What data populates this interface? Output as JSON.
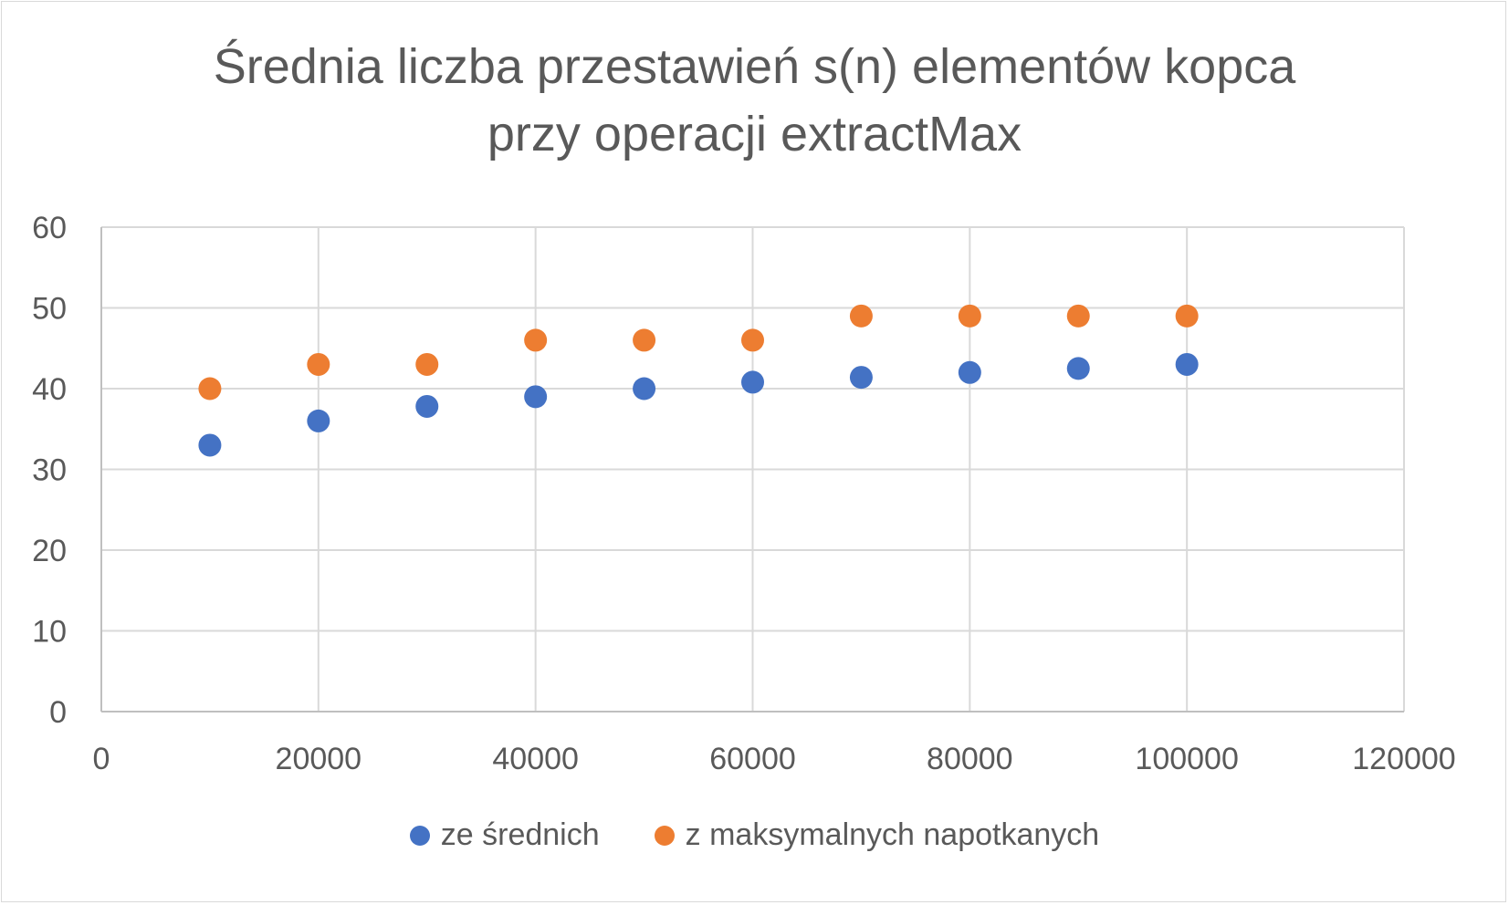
{
  "chart_data": {
    "type": "scatter",
    "title_line1": "Średnia liczba przestawień s(n) elementów kopca",
    "title_line2": "przy operacji extractMax",
    "xlabel": "",
    "ylabel": "",
    "xlim": [
      0,
      120000
    ],
    "ylim": [
      0,
      60
    ],
    "x_ticks": [
      "0",
      "20000",
      "40000",
      "60000",
      "80000",
      "100000",
      "120000"
    ],
    "y_ticks": [
      "0",
      "10",
      "20",
      "30",
      "40",
      "50",
      "60"
    ],
    "grid": true,
    "legend_position": "bottom",
    "series": [
      {
        "name": "ze średnich",
        "color": "#4472c4",
        "x": [
          10000,
          20000,
          30000,
          40000,
          50000,
          60000,
          70000,
          80000,
          90000,
          100000
        ],
        "y": [
          33.0,
          36.0,
          37.8,
          39.0,
          40.0,
          40.8,
          41.4,
          42.0,
          42.5,
          43.0
        ]
      },
      {
        "name": "z maksymalnych napotkanych",
        "color": "#ed7d31",
        "x": [
          10000,
          20000,
          30000,
          40000,
          50000,
          60000,
          70000,
          80000,
          90000,
          100000
        ],
        "y": [
          40,
          43,
          43,
          46,
          46,
          46,
          49,
          49,
          49,
          49
        ]
      }
    ]
  }
}
